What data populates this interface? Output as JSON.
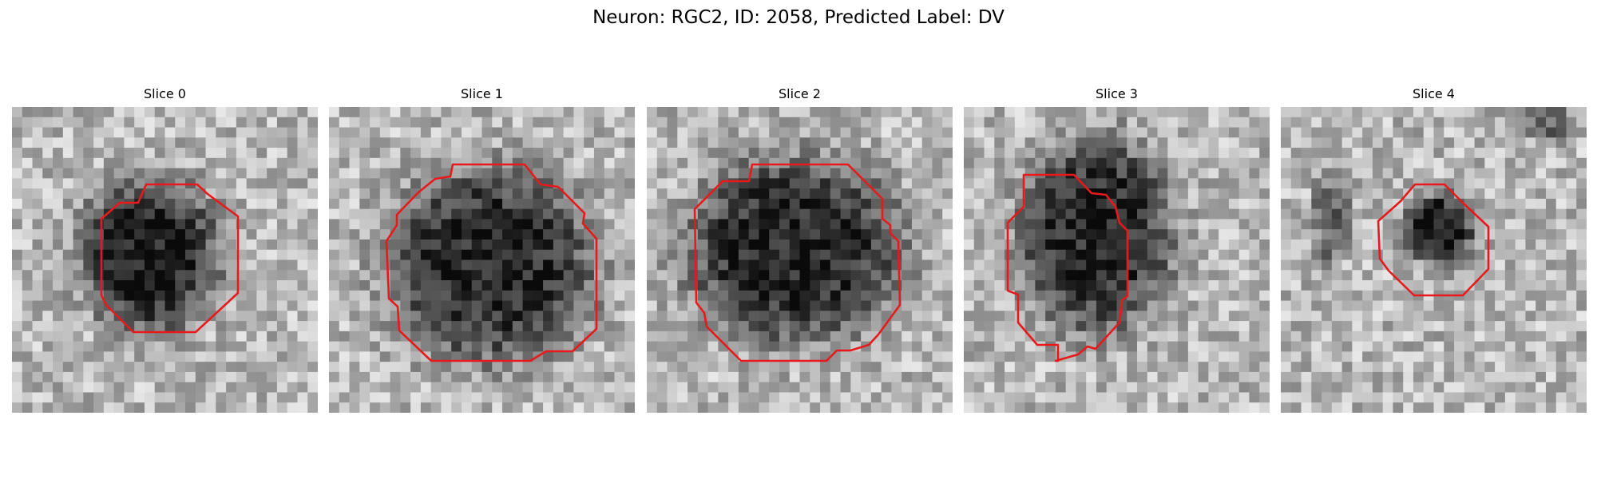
{
  "title": "Neuron: RGC2, ID: 2058, Predicted Label: DV",
  "panels": [
    {
      "label": "Slice 0"
    },
    {
      "label": "Slice 1"
    },
    {
      "label": "Slice 2"
    },
    {
      "label": "Slice 3"
    },
    {
      "label": "Slice 4"
    }
  ],
  "colors": {
    "contour": "#e8191c",
    "background": "#ffffff"
  }
}
